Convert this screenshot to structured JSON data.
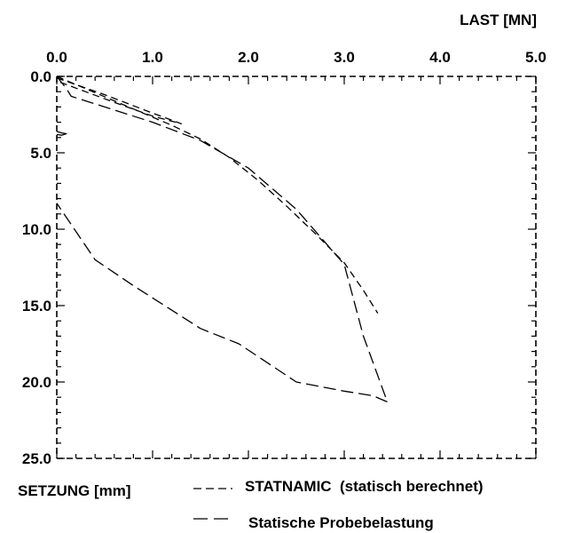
{
  "chart_data": {
    "type": "line",
    "xlabel": "LAST [MN]",
    "ylabel": "SETZUNG [mm]",
    "xlim": [
      0.0,
      5.0
    ],
    "ylim": [
      0.0,
      25.0
    ],
    "x_axis_position": "top",
    "y_axis_inverted": true,
    "grid": false,
    "x_ticks": [
      "0.0",
      "1.0",
      "2.0",
      "3.0",
      "4.0",
      "5.0"
    ],
    "y_ticks": [
      "0.0",
      "5.0",
      "10.0",
      "15.0",
      "20.0",
      "25.0"
    ],
    "legend_position": "bottom",
    "series": [
      {
        "name": "STATNAMIC  (statisch berechnet)",
        "style": "dashed-short",
        "color": "#000000",
        "points": [
          [
            0.0,
            0.0
          ],
          [
            0.3,
            0.8
          ],
          [
            0.6,
            1.6
          ],
          [
            0.9,
            2.4
          ],
          [
            1.2,
            3.2
          ],
          [
            1.5,
            4.1
          ],
          [
            1.8,
            5.3
          ],
          [
            2.1,
            6.8
          ],
          [
            2.4,
            8.5
          ],
          [
            2.7,
            10.3
          ],
          [
            3.0,
            12.2
          ],
          [
            3.2,
            14.0
          ],
          [
            3.35,
            15.5
          ]
        ]
      },
      {
        "name": "Statische Probebelastung",
        "style": "dashed-long",
        "color": "#000000",
        "points": [
          [
            0.0,
            0.0
          ],
          [
            0.1,
            0.8
          ],
          [
            0.15,
            1.3
          ],
          [
            0.5,
            2.0
          ],
          [
            1.0,
            3.0
          ],
          [
            1.5,
            4.2
          ],
          [
            2.0,
            6.0
          ],
          [
            2.5,
            8.7
          ],
          [
            3.0,
            12.3
          ],
          [
            3.2,
            17.0
          ],
          [
            3.45,
            21.3
          ],
          [
            3.3,
            20.9
          ],
          [
            3.0,
            20.6
          ],
          [
            2.5,
            20.0
          ],
          [
            1.9,
            17.5
          ],
          [
            1.5,
            16.5
          ],
          [
            0.8,
            13.7
          ],
          [
            0.4,
            12.0
          ],
          [
            0.0,
            8.3
          ]
        ]
      },
      {
        "name": "",
        "style": "dashed-short",
        "color": "#000000",
        "points": [
          [
            0.0,
            0.1
          ],
          [
            0.5,
            1.2
          ],
          [
            1.0,
            2.4
          ],
          [
            1.3,
            3.1
          ],
          [
            1.0,
            2.6
          ],
          [
            0.6,
            1.7
          ],
          [
            0.3,
            1.0
          ],
          [
            0.0,
            0.3
          ]
        ]
      },
      {
        "name": "",
        "style": "solid",
        "color": "#000000",
        "points": [
          [
            0.0,
            3.6
          ],
          [
            0.05,
            3.7
          ],
          [
            0.1,
            3.75
          ],
          [
            0.05,
            3.85
          ],
          [
            0.0,
            3.8
          ]
        ]
      }
    ]
  }
}
